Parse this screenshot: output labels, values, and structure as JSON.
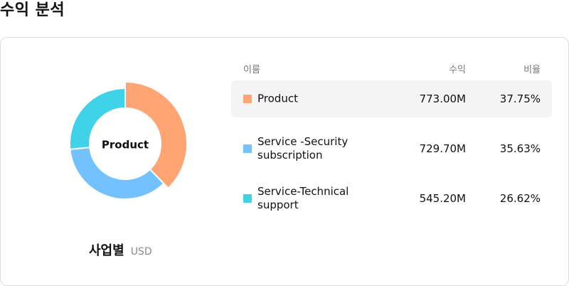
{
  "page": {
    "title": "수익 분석"
  },
  "chart": {
    "center_label": "Product",
    "caption": "사업별",
    "unit": "USD"
  },
  "table": {
    "headers": {
      "name": "이름",
      "revenue": "수익",
      "ratio": "비율"
    },
    "rows": [
      {
        "name": "Product",
        "revenue": "773.00M",
        "ratio": "37.75%",
        "color": "#ffa473",
        "selected": true
      },
      {
        "name": "Service -Security subscription",
        "revenue": "729.70M",
        "ratio": "35.63%",
        "color": "#73c2ff",
        "selected": false
      },
      {
        "name": "Service-Technical support",
        "revenue": "545.20M",
        "ratio": "26.62%",
        "color": "#40d2e8",
        "selected": false
      }
    ]
  },
  "chart_data": {
    "type": "pie",
    "categories": [
      "Product",
      "Service -Security subscription",
      "Service-Technical support"
    ],
    "values": [
      773.0,
      729.7,
      545.2
    ],
    "percentages": [
      37.75,
      35.63,
      26.62
    ],
    "colors": [
      "#ffa473",
      "#73c2ff",
      "#40d2e8"
    ],
    "selected_index": 0,
    "unit": "USD"
  }
}
